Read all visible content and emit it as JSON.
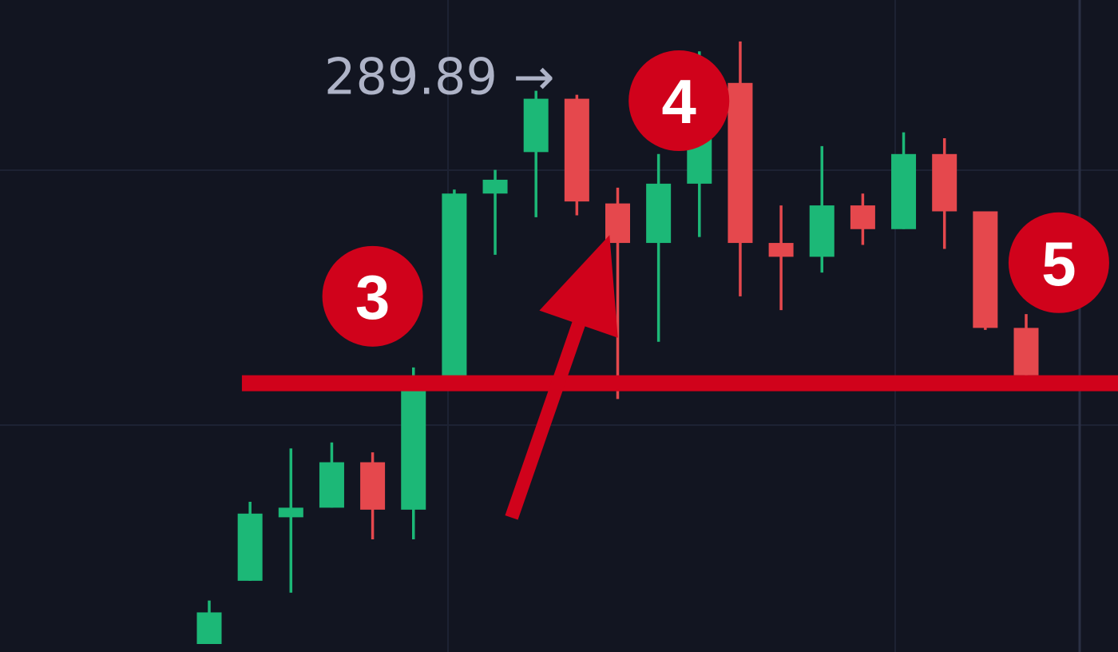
{
  "chart_data": {
    "type": "candlestick",
    "title": "",
    "xlabel": "",
    "ylabel": "",
    "ylim": [
      262.0,
      291.2
    ],
    "grid": true,
    "colors": {
      "up": "#1cb877",
      "down": "#e5484d",
      "annotation": "#d0021b",
      "background": "#121521",
      "grid": "#1d2233",
      "label": "#aeb3c7"
    },
    "candles": [
      {
        "o": 262.0,
        "h": 264.2,
        "l": 262.0,
        "c": 263.6
      },
      {
        "o": 265.2,
        "h": 269.2,
        "l": 265.2,
        "c": 268.6
      },
      {
        "o": 268.6,
        "h": 271.9,
        "l": 264.6,
        "c": 268.9
      },
      {
        "o": 268.9,
        "h": 272.2,
        "l": 268.9,
        "c": 271.2
      },
      {
        "o": 271.2,
        "h": 271.7,
        "l": 267.3,
        "c": 268.8
      },
      {
        "o": 268.8,
        "h": 276.0,
        "l": 267.3,
        "c": 275.4
      },
      {
        "o": 275.4,
        "h": 285.0,
        "l": 275.4,
        "c": 284.8
      },
      {
        "o": 284.8,
        "h": 286.0,
        "l": 281.7,
        "c": 285.5
      },
      {
        "o": 286.9,
        "h": 290.0,
        "l": 283.6,
        "c": 289.6
      },
      {
        "o": 289.6,
        "h": 289.8,
        "l": 283.7,
        "c": 284.4
      },
      {
        "o": 284.3,
        "h": 285.1,
        "l": 274.4,
        "c": 282.3
      },
      {
        "o": 282.3,
        "h": 286.8,
        "l": 277.3,
        "c": 285.3
      },
      {
        "o": 285.3,
        "h": 292.0,
        "l": 282.6,
        "c": 290.4
      },
      {
        "o": 290.4,
        "h": 292.5,
        "l": 279.6,
        "c": 282.3
      },
      {
        "o": 282.3,
        "h": 284.2,
        "l": 278.9,
        "c": 281.6
      },
      {
        "o": 281.6,
        "h": 287.2,
        "l": 280.8,
        "c": 284.2
      },
      {
        "o": 284.2,
        "h": 284.8,
        "l": 282.2,
        "c": 283.0
      },
      {
        "o": 283.0,
        "h": 287.9,
        "l": 283.0,
        "c": 286.8
      },
      {
        "o": 286.8,
        "h": 287.6,
        "l": 282.0,
        "c": 283.9
      },
      {
        "o": 283.9,
        "h": 283.9,
        "l": 277.9,
        "c": 278.0
      },
      {
        "o": 278.0,
        "h": 278.7,
        "l": 275.4,
        "c": 275.6
      }
    ],
    "price_label": {
      "text": "289.89 →",
      "value": 289.89
    },
    "support_line": {
      "value": 275.2,
      "from_candle": 0.8,
      "to_candle": 22.5
    },
    "arrow": {
      "from": {
        "candle": 7.4,
        "value": 268.4
      },
      "to": {
        "candle": 9.8,
        "value": 282.7
      }
    },
    "markers": [
      {
        "label": "3",
        "candle": 4.0,
        "value": 279.6
      },
      {
        "label": "4",
        "candle": 11.5,
        "value": 289.5
      },
      {
        "label": "5",
        "candle": 20.8,
        "value": 281.3
      }
    ]
  }
}
